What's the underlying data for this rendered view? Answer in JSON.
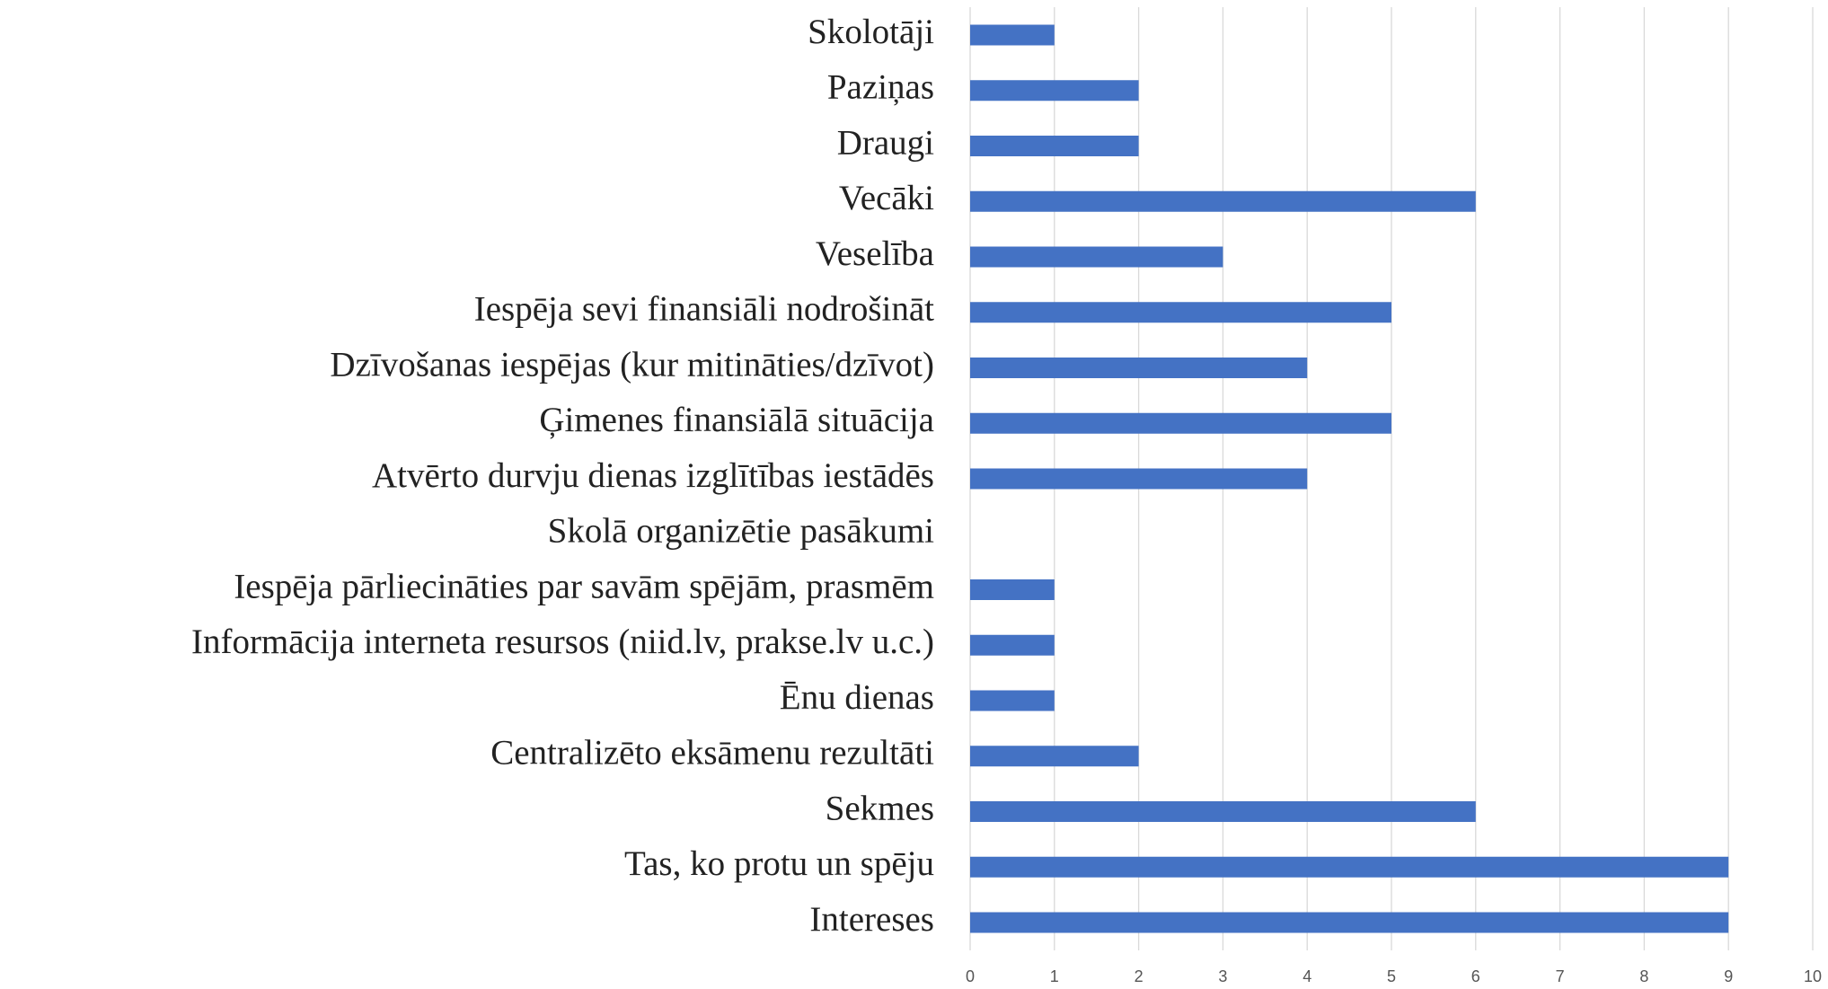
{
  "chart_data": {
    "type": "hbar",
    "categories": [
      "Skolotāji",
      "Paziņas",
      "Draugi",
      "Vecāki",
      "Veselība",
      "Iespēja sevi finansiāli nodrošināt",
      "Dzīvošanas iespējas (kur mitināties/dzīvot)",
      "Ģimenes finansiālā situācija",
      "Atvērto durvju dienas izglītības iestādēs",
      "Skolā organizētie pasākumi",
      "Iespēja pārliecināties par savām spējām, prasmēm",
      "Informācija interneta resursos (niid.lv, prakse.lv u.c.)",
      "Ēnu dienas",
      "Centralizēto eksāmenu rezultāti",
      "Sekmes",
      "Tas, ko protu un spēju",
      "Intereses"
    ],
    "values": [
      1,
      2,
      2,
      6,
      3,
      5,
      4,
      5,
      4,
      0,
      1,
      1,
      1,
      2,
      6,
      9,
      9
    ],
    "color": "#4472c4",
    "xlim": [
      0,
      10
    ],
    "xticks": [
      0,
      1,
      2,
      3,
      4,
      5,
      6,
      7,
      8,
      9,
      10
    ],
    "grid": true
  }
}
